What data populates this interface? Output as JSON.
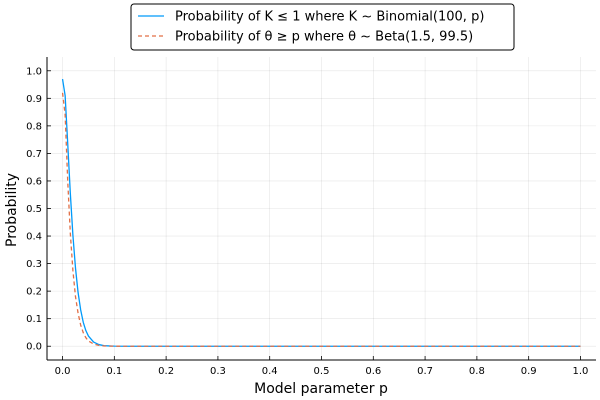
{
  "chart_data": {
    "type": "line",
    "xlabel": "Model parameter p",
    "ylabel": "Probability",
    "xlim": [
      -0.03,
      1.03
    ],
    "ylim": [
      -0.05,
      1.05
    ],
    "x_ticks": [
      "0.0",
      "0.1",
      "0.2",
      "0.3",
      "0.4",
      "0.5",
      "0.6",
      "0.7",
      "0.8",
      "0.9",
      "1.0"
    ],
    "y_ticks": [
      "0.0",
      "0.1",
      "0.2",
      "0.3",
      "0.4",
      "0.5",
      "0.6",
      "0.7",
      "0.8",
      "0.9",
      "1.0"
    ],
    "grid": true,
    "legend_position": "top-center",
    "series": [
      {
        "name": "Probability of K ≤ 1 where K ~ Binomial(100, p)",
        "color": "#009AFA",
        "style": "solid",
        "x": [
          0.0,
          0.005,
          0.01,
          0.015,
          0.02,
          0.025,
          0.03,
          0.035,
          0.04,
          0.045,
          0.05,
          0.06,
          0.07,
          0.08,
          0.09,
          0.1,
          0.12,
          0.15,
          0.2,
          0.3,
          0.4,
          0.5,
          0.6,
          0.7,
          0.8,
          0.9,
          1.0
        ],
        "y": [
          0.97,
          0.91,
          0.736,
          0.556,
          0.403,
          0.284,
          0.195,
          0.132,
          0.087,
          0.057,
          0.037,
          0.015,
          0.006,
          0.002,
          0.001,
          0.0003,
          3e-05,
          0.0,
          0.0,
          0.0,
          0.0,
          0.0,
          0.0,
          0.0,
          0.0,
          0.0,
          0.0
        ]
      },
      {
        "name": "Probability of θ ≥ p where θ ~ Beta(1.5, 99.5)",
        "color": "#E26F46",
        "style": "dashed",
        "x": [
          0.0,
          0.005,
          0.01,
          0.015,
          0.02,
          0.025,
          0.03,
          0.035,
          0.04,
          0.045,
          0.05,
          0.06,
          0.07,
          0.08,
          0.09,
          0.1,
          0.12,
          0.15,
          0.2,
          0.3,
          0.4,
          0.5,
          0.6,
          0.7,
          0.8,
          0.9,
          1.0
        ],
        "y": [
          0.92,
          0.84,
          0.6,
          0.41,
          0.275,
          0.18,
          0.12,
          0.077,
          0.049,
          0.031,
          0.019,
          0.008,
          0.003,
          0.001,
          0.0005,
          0.0002,
          0.0,
          0.0,
          0.0,
          0.0,
          0.0,
          0.0,
          0.0,
          0.0,
          0.0,
          0.0,
          0.0
        ]
      }
    ]
  }
}
